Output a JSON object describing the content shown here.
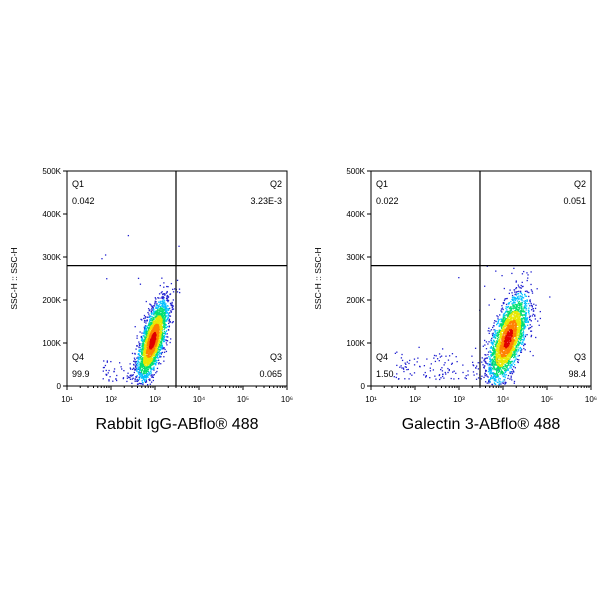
{
  "chart_data": [
    {
      "type": "scatter",
      "subtype": "flow-cytometry-density-dot-plot",
      "xlabel": "Rabbit IgG-ABflo® 488",
      "ylabel": "SSC-H :: SSC-H",
      "xscale": "log",
      "xlim": [
        10,
        1000000
      ],
      "ylim": [
        0,
        500000
      ],
      "x_ticks": [
        "10¹",
        "10²",
        "10³",
        "10⁴",
        "10⁵",
        "10⁶"
      ],
      "y_ticks": [
        "0",
        "100K",
        "200K",
        "300K",
        "400K",
        "500K"
      ],
      "gate": {
        "x": 3000,
        "y": 280000
      },
      "quadrants": [
        {
          "name": "Q1",
          "value": "0.042",
          "corner": "top-left"
        },
        {
          "name": "Q2",
          "value": "3.23E-3",
          "corner": "top-right"
        },
        {
          "name": "Q3",
          "value": "0.065",
          "corner": "bottom-right"
        },
        {
          "name": "Q4",
          "value": "99.9",
          "corner": "bottom-left"
        }
      ],
      "population": {
        "center": {
          "log_x": 2.95,
          "y": 105000
        },
        "spread": {
          "log_x": 0.17,
          "y": 45000
        },
        "correlation": 0.68,
        "tail": "sparse events extending left to about 10^1.8 near 10K-60K"
      },
      "color_scale": [
        "#1f1fd0",
        "#00c0ff",
        "#00e070",
        "#e8e800",
        "#ff8000",
        "#e00000"
      ]
    },
    {
      "type": "scatter",
      "subtype": "flow-cytometry-density-dot-plot",
      "xlabel": "Galectin 3-ABflo® 488",
      "ylabel": "SSC-H :: SSC-H",
      "xscale": "log",
      "xlim": [
        10,
        1000000
      ],
      "ylim": [
        0,
        500000
      ],
      "x_ticks": [
        "10¹",
        "10²",
        "10³",
        "10⁴",
        "10⁵",
        "10⁶"
      ],
      "y_ticks": [
        "0",
        "100K",
        "200K",
        "300K",
        "400K",
        "500K"
      ],
      "gate": {
        "x": 3000,
        "y": 280000
      },
      "quadrants": [
        {
          "name": "Q1",
          "value": "0.022",
          "corner": "top-left"
        },
        {
          "name": "Q2",
          "value": "0.051",
          "corner": "top-right"
        },
        {
          "name": "Q3",
          "value": "98.4",
          "corner": "bottom-right"
        },
        {
          "name": "Q4",
          "value": "1.50",
          "corner": "bottom-left"
        }
      ],
      "population": {
        "center": {
          "log_x": 4.12,
          "y": 110000
        },
        "spread": {
          "log_x": 0.22,
          "y": 50000
        },
        "correlation": 0.62,
        "tail": "sparse events extending left to about 10^1.5 near 20K-80K"
      },
      "color_scale": [
        "#1f1fd0",
        "#00c0ff",
        "#00e070",
        "#e8e800",
        "#ff8000",
        "#e00000"
      ]
    }
  ]
}
